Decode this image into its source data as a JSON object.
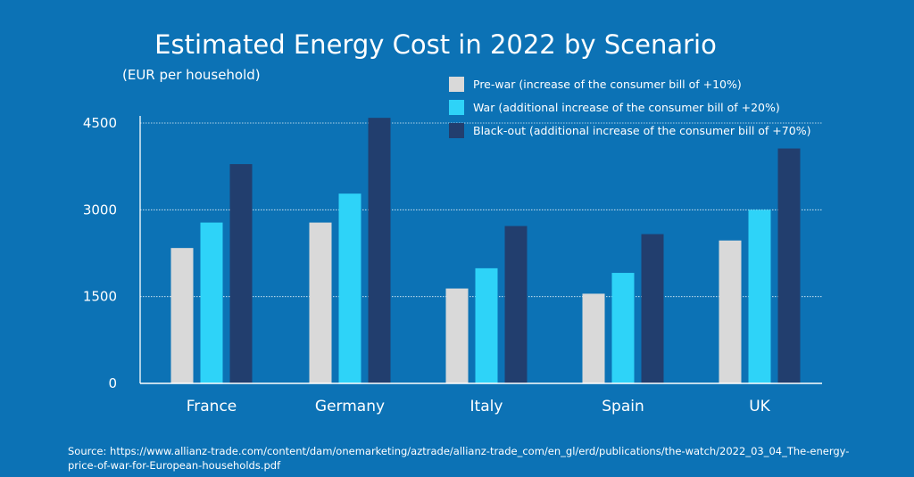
{
  "chart_data": {
    "type": "bar",
    "title": "Estimated Energy Cost in 2022 by Scenario",
    "subtitle": "(EUR per household)",
    "categories": [
      "France",
      "Germany",
      "Italy",
      "Spain",
      "UK"
    ],
    "series": [
      {
        "name": "Pre-war (increase of the consumer bill of +10%)",
        "color": "#d9d9d9",
        "values": [
          2340,
          2780,
          1640,
          1550,
          2470
        ]
      },
      {
        "name": "War (additional increase of the consumer bill of +20%)",
        "color": "#2ed3f8",
        "values": [
          2780,
          3280,
          1990,
          1910,
          3000
        ]
      },
      {
        "name": "Black-out (additional increase of the consumer bill of +70%)",
        "color": "#223e6e",
        "values": [
          3790,
          4590,
          2720,
          2580,
          4060
        ]
      }
    ],
    "yticks": [
      0,
      1500,
      3000,
      4500
    ],
    "ylim": [
      0,
      4500
    ],
    "grid": true,
    "legend_position": "top-right"
  },
  "source": "Source: https://www.allianz-trade.com/content/dam/onemarketing/aztrade/allianz-trade_com/en_gl/erd/publications/the-watch/2022_03_04_The-energy-price-of-war-for-European-households.pdf",
  "colors": {
    "background": "#0c72b5",
    "gridline": "#ffffff"
  }
}
